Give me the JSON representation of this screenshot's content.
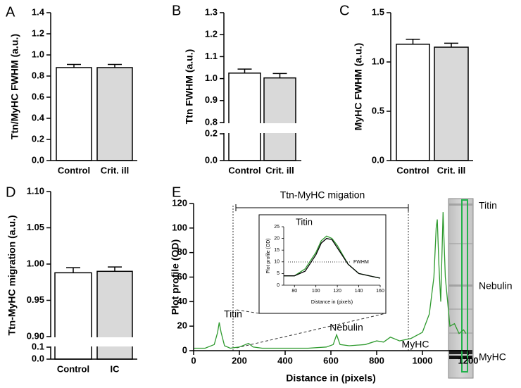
{
  "chart_data": [
    {
      "type": "bar",
      "panel_label": "A",
      "ylabel": "Ttn/MyHC FWHM (a.u.)",
      "categories": [
        "Control",
        "Crit. ill"
      ],
      "values": [
        0.88,
        0.88
      ],
      "errors": [
        0.03,
        0.03
      ],
      "colors": [
        "#ffffff",
        "#d9d9d9"
      ],
      "ylim": [
        0,
        1.4
      ],
      "yticks": [
        {
          "value": 0,
          "label": "0.0"
        },
        0.2,
        0.4,
        0.6,
        0.8,
        {
          "value": 1,
          "label": "1.0"
        },
        1.2,
        1.4
      ]
    },
    {
      "type": "bar",
      "panel_label": "B",
      "ylabel": "Ttn FWHM (a.u.)",
      "categories": [
        "Control",
        "Crit. ill"
      ],
      "values": [
        1.025,
        1.003
      ],
      "errors": [
        0.018,
        0.02
      ],
      "colors": [
        "#ffffff",
        "#d9d9d9"
      ],
      "ylim": [
        0,
        1.3
      ],
      "ybreak": [
        0.2,
        0.8
      ],
      "yticks": [
        {
          "value": 0,
          "label": "0.0"
        },
        0.2,
        0.8,
        0.9,
        {
          "value": 1,
          "label": "1.0"
        },
        1.1,
        1.2,
        1.3
      ]
    },
    {
      "type": "bar",
      "panel_label": "C",
      "ylabel": "MyHC FWHM (a.u.)",
      "categories": [
        "Control",
        "Crit. ill"
      ],
      "values": [
        1.18,
        1.15
      ],
      "errors": [
        0.05,
        0.04
      ],
      "colors": [
        "#ffffff",
        "#d9d9d9"
      ],
      "ylim": [
        0,
        1.5
      ],
      "yticks": [
        {
          "value": 0,
          "label": "0.0"
        },
        0.5,
        {
          "value": 1,
          "label": "1.0"
        },
        1.5
      ]
    },
    {
      "type": "bar",
      "panel_label": "D",
      "ylabel": "Ttn-MyHC migration (a.u.)",
      "categories": [
        "Control",
        "IC"
      ],
      "values": [
        0.988,
        0.99
      ],
      "errors": [
        0.007,
        0.006
      ],
      "colors": [
        "#ffffff",
        "#d9d9d9"
      ],
      "ylim": [
        0,
        1.1
      ],
      "ybreak": [
        0.1,
        0.9
      ],
      "yticks": [
        {
          "value": 0,
          "label": "0.0"
        },
        0.1,
        {
          "value": 0.9,
          "label": "0.90"
        },
        0.95,
        {
          "value": 1,
          "label": "1.00"
        },
        1.05,
        {
          "value": 1.1,
          "label": "1.10"
        }
      ]
    },
    {
      "type": "line",
      "panel_label": "E",
      "xlabel": "Distance in (pixels)",
      "ylabel": "Plot profile (OD)",
      "annotations": [
        "Titin",
        "Nebulin",
        "MyHC",
        "Ttn-MyHC migation"
      ],
      "x": [
        0,
        50,
        90,
        105,
        112,
        120,
        135,
        160,
        200,
        240,
        260,
        300,
        400,
        500,
        580,
        610,
        625,
        640,
        680,
        750,
        800,
        830,
        860,
        900,
        950,
        1000,
        1030,
        1050,
        1060,
        1065,
        1072,
        1080,
        1090,
        1100,
        1120,
        1140,
        1160,
        1180,
        1190
      ],
      "series": [
        {
          "name": "profile",
          "color": "#2e9a2e",
          "values": [
            2,
            2,
            5,
            15,
            23,
            15,
            4,
            2,
            3,
            6,
            3,
            2,
            2,
            2,
            3,
            5,
            13,
            5,
            4,
            5,
            8,
            7,
            11,
            8,
            10,
            15,
            30,
            60,
            100,
            107,
            70,
            40,
            113,
            60,
            20,
            22,
            14,
            17,
            14
          ]
        }
      ],
      "xlim": [
        0,
        1200
      ],
      "xticks": [
        0,
        200,
        400,
        600,
        800,
        1000,
        1200
      ],
      "ylim": [
        0,
        120
      ],
      "yticks": [
        0,
        20,
        40,
        60,
        80,
        100,
        120
      ]
    },
    {
      "type": "line",
      "title": "Titin",
      "xlabel": "Distance in (pixels)",
      "ylabel": "Plot profile (OD)",
      "annotation": "FWHM",
      "x": [
        70,
        80,
        90,
        100,
        105,
        110,
        115,
        120,
        130,
        140,
        150,
        160
      ],
      "series": [
        {
          "name": "green",
          "color": "#2e9a2e",
          "values": [
            4,
            4,
            7,
            14,
            19,
            21,
            20,
            17,
            9,
            5,
            4,
            3
          ]
        },
        {
          "name": "black",
          "color": "#000000",
          "values": [
            4,
            4,
            6,
            13,
            18,
            20,
            19.5,
            16,
            9,
            5,
            4,
            3
          ]
        }
      ],
      "xlim": [
        70,
        160
      ],
      "xticks": [
        80,
        100,
        120,
        140,
        160
      ],
      "ylim": [
        0,
        25
      ],
      "yticks": [
        0,
        5,
        10,
        15,
        20,
        25
      ]
    }
  ],
  "gel": {
    "labels": [
      "Titin",
      "Nebulin",
      "MyHC"
    ]
  }
}
